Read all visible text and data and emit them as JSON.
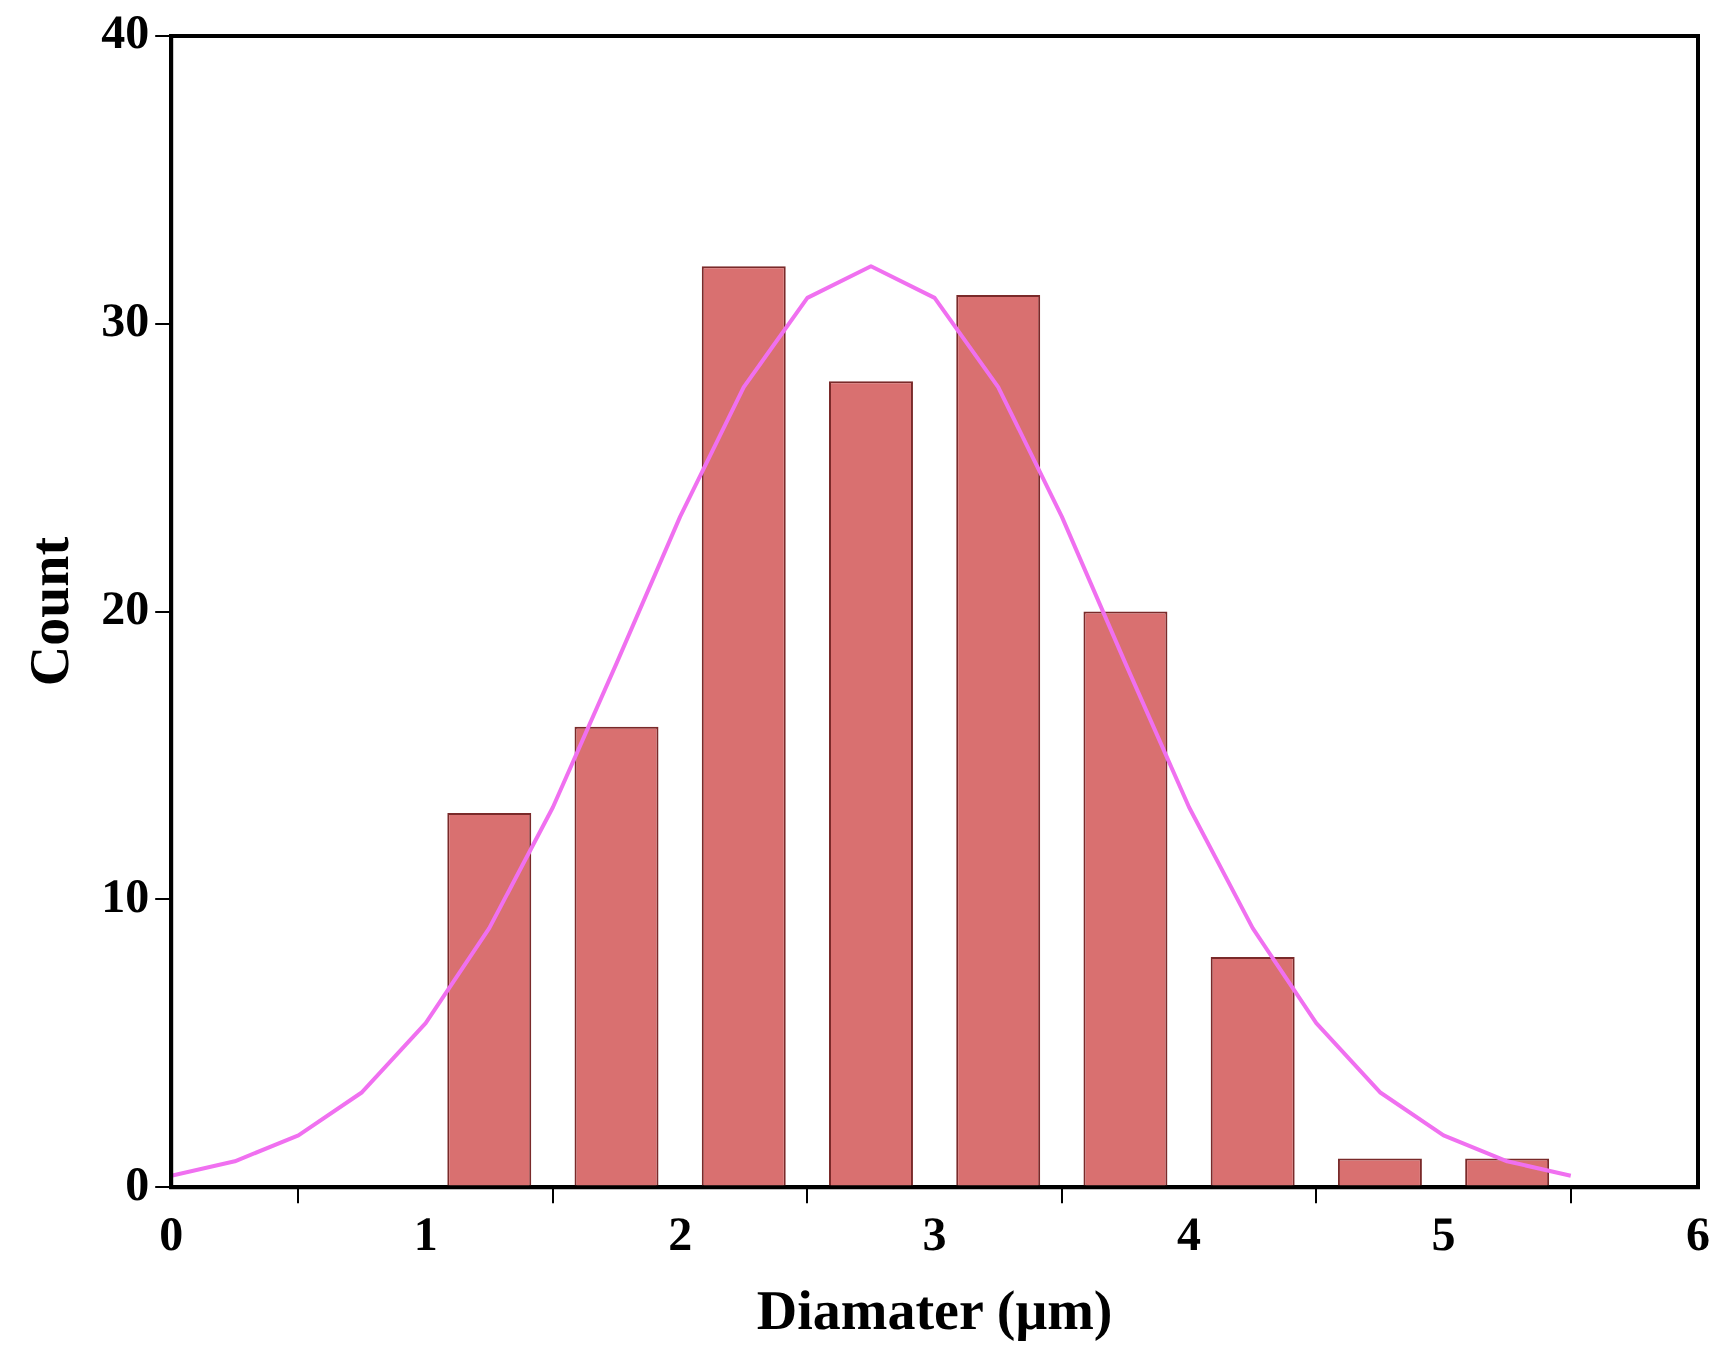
{
  "chart_data": {
    "type": "bar",
    "xlabel": "Diamater (μm)",
    "ylabel": "Count",
    "xlim": [
      0,
      6
    ],
    "xticks": [
      0,
      1,
      2,
      3,
      4,
      5,
      6
    ],
    "ylim": [
      0,
      40
    ],
    "yticks": [
      0,
      10,
      20,
      30,
      40
    ],
    "grid": false,
    "legend": false,
    "series": [
      {
        "color": "#d97070",
        "x": [
          1.25,
          1.75,
          2.25,
          2.75,
          3.25,
          3.75,
          4.25,
          4.75,
          5.25
        ],
        "values": [
          13,
          16,
          32,
          28,
          31,
          20,
          8,
          1,
          1
        ]
      },
      {
        "type": "line",
        "color": "#f070f0",
        "marker": "none",
        "line_style": "solid",
        "x": [
          0,
          0.25,
          0.5,
          0.75,
          1,
          1.25,
          1.5,
          1.75,
          2,
          2.25,
          2.5,
          2.75,
          3,
          3.25,
          3.5,
          3.75,
          4,
          4.25,
          4.5,
          4.75,
          5,
          5.25,
          5.5
        ],
        "values": [
          0.4,
          0.9,
          1.8,
          3.3,
          5.7,
          9,
          13.2,
          18.2,
          23.3,
          27.8,
          30.9,
          32,
          30.9,
          27.8,
          23.3,
          18.2,
          13.2,
          9,
          5.7,
          3.3,
          1.8,
          0.9,
          0.4
        ]
      }
    ]
  }
}
